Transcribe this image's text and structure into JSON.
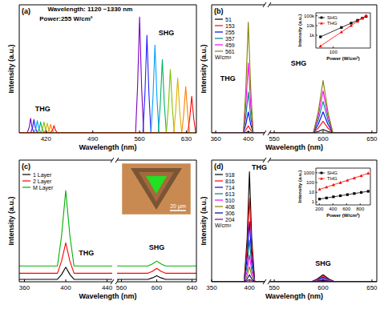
{
  "chart_data": [
    {
      "type": "line",
      "title": "(a)",
      "x_label": "Wavelength (nm)",
      "y_label": "Intensity (a.u.)",
      "xlim": [
        380,
        645
      ],
      "xticks": [
        420,
        490,
        560,
        630
      ],
      "ylim": [
        0,
        105
      ],
      "tick_labels": "x",
      "annotations": [
        {
          "text": "Wavelength: 1120 ~1330 nm",
          "x": 486,
          "y": 100
        },
        {
          "text": "Power:255 W/cm²",
          "x": 450,
          "y": 92
        },
        {
          "text": "THG",
          "x": 415,
          "y": 18
        },
        {
          "text": "SHG",
          "x": 600,
          "y": 80
        }
      ],
      "series": [
        {
          "color": "#7a00c0",
          "x": [
            380,
            392,
            395,
            397,
            399,
            402,
            554,
            557,
            560,
            563,
            566,
            645
          ],
          "values": [
            0,
            0,
            4.8,
            12,
            4.8,
            0,
            0,
            38,
            95,
            38,
            0,
            0
          ]
        },
        {
          "color": "#2020ff",
          "x": [
            380,
            397,
            400,
            402,
            404,
            407,
            565,
            568,
            571,
            574,
            577,
            645
          ],
          "values": [
            0,
            0,
            4.4,
            11,
            4.4,
            0,
            0,
            32,
            80,
            32,
            0,
            0
          ]
        },
        {
          "color": "#00a0ff",
          "x": [
            380,
            402,
            405,
            407,
            409,
            412,
            577,
            580,
            583,
            586,
            589,
            645
          ],
          "values": [
            0,
            0,
            4,
            10,
            4,
            0,
            0,
            28.8,
            72,
            28.8,
            0,
            0
          ]
        },
        {
          "color": "#00b060",
          "x": [
            380,
            407,
            410,
            412,
            414,
            417,
            588,
            591,
            594,
            597,
            600,
            645
          ],
          "values": [
            0,
            0,
            3.6,
            9,
            3.6,
            0,
            0,
            24,
            60,
            24,
            0,
            0
          ]
        },
        {
          "color": "#80c000",
          "x": [
            380,
            412,
            415,
            417,
            419,
            422,
            600,
            603,
            606,
            609,
            612,
            645
          ],
          "values": [
            0,
            0,
            3.6,
            9,
            3.6,
            0,
            0,
            20.8,
            52,
            20.8,
            0,
            0
          ]
        },
        {
          "color": "#e0b000",
          "x": [
            380,
            417,
            420,
            422,
            424,
            427,
            611,
            614,
            617,
            620,
            623,
            645
          ],
          "values": [
            0,
            0,
            3.2,
            8,
            3.2,
            0,
            0,
            18,
            45,
            18,
            0,
            0
          ]
        },
        {
          "color": "#ff8000",
          "x": [
            380,
            422,
            425,
            427,
            429,
            432,
            623,
            626,
            629,
            632,
            635,
            645
          ],
          "values": [
            0,
            0,
            2.8,
            7,
            2.8,
            0,
            0,
            15.2,
            38,
            15.2,
            0,
            0
          ]
        },
        {
          "color": "#ff0000",
          "x": [
            380,
            427,
            430,
            432,
            434,
            437,
            632,
            635,
            638,
            641,
            644,
            645
          ],
          "values": [
            0,
            0,
            2.4,
            6,
            2.4,
            0,
            0,
            12,
            30,
            12,
            0,
            0
          ]
        }
      ]
    },
    {
      "type": "line",
      "title": "(b)",
      "x_label": "Wavelength (nm)",
      "y_label": "Intensity (a.u.)",
      "xlim": [
        355,
        420
      ],
      "xticks": [
        360,
        400
      ],
      "ylim": [
        0,
        110
      ],
      "tick_labels": "x",
      "legend": "top-left",
      "legend_title": "W/cm²",
      "annotations": [
        {
          "text": "THG",
          "x": 375,
          "y": 45
        }
      ],
      "x": [
        355,
        394,
        397,
        400,
        403,
        406,
        420
      ],
      "series": [
        {
          "name": "51",
          "color": "#000000",
          "values": [
            0,
            0,
            0.4,
            1,
            0.4,
            0,
            0
          ]
        },
        {
          "name": "153",
          "color": "#ff0000",
          "values": [
            0,
            0,
            2.4,
            6,
            2.4,
            0,
            0
          ]
        },
        {
          "name": "255",
          "color": "#0000ff",
          "values": [
            0,
            0,
            7.2,
            18,
            7.2,
            0,
            0
          ]
        },
        {
          "name": "357",
          "color": "#008080",
          "values": [
            0,
            0,
            14,
            35,
            14,
            0,
            0
          ]
        },
        {
          "name": "459",
          "color": "#ff00ff",
          "values": [
            0,
            0,
            24,
            60,
            24,
            0,
            0
          ]
        },
        {
          "name": "561",
          "color": "#808000",
          "values": [
            0,
            0,
            38,
            95,
            38,
            0,
            0
          ]
        }
      ]
    },
    {
      "type": "line",
      "xlim": [
        545,
        655
      ],
      "xticks": [
        550,
        600,
        650
      ],
      "ylim": [
        0,
        110
      ],
      "tick_labels": "x",
      "annotations": [
        {
          "text": "SHG",
          "x": 575,
          "y": 58
        }
      ],
      "x": [
        545,
        590,
        595,
        600,
        605,
        610,
        655
      ],
      "series": [
        {
          "color": "#000000",
          "values": [
            0,
            0,
            1.2,
            3,
            1.2,
            0,
            0
          ]
        },
        {
          "color": "#ff0000",
          "values": [
            0,
            0,
            4,
            10,
            4,
            0,
            0
          ]
        },
        {
          "color": "#0000ff",
          "values": [
            0,
            0,
            7.2,
            18,
            7.2,
            0,
            0
          ]
        },
        {
          "color": "#008080",
          "values": [
            0,
            0,
            10.8,
            27,
            10.8,
            0,
            0
          ]
        },
        {
          "color": "#ff00ff",
          "values": [
            0,
            0,
            14.4,
            36,
            14.4,
            0,
            0
          ]
        },
        {
          "color": "#808000",
          "values": [
            0,
            0,
            18,
            45,
            18,
            0,
            0
          ]
        }
      ]
    },
    {
      "type": "scatter",
      "log": true,
      "x_label": "Power (W/cm²)",
      "y_label": "Intensity (a.u.)",
      "xlim": [
        40,
        700
      ],
      "xticks": [
        100
      ],
      "ylim": [
        50,
        200000
      ],
      "yticks": [
        {
          "value": 1000,
          "label": "1k"
        },
        {
          "value": 10000,
          "label": "10k"
        },
        {
          "value": 100000,
          "label": "100k"
        }
      ],
      "legend": "top-left",
      "x": [
        51,
        153,
        255,
        357,
        459,
        561
      ],
      "series": [
        {
          "name": "SHG",
          "color": "#000000",
          "marker": "square",
          "line_style": "solid",
          "values": [
            700,
            6300,
            17500,
            34300,
            56700,
            84700
          ]
        },
        {
          "name": "THG",
          "color": "#ff0000",
          "marker": "triangle",
          "line_style": "solid",
          "values": [
            80,
            2160,
            10000,
            27400,
            58300,
            106500
          ]
        }
      ]
    },
    {
      "type": "line",
      "title": "(c)",
      "x_label": "Wavelength (nm)",
      "y_label": "Intensity (a.u.)",
      "xlim": [
        355,
        445
      ],
      "xticks": [
        360,
        400,
        440
      ],
      "ylim": [
        0,
        100
      ],
      "tick_labels": "x",
      "legend": "top-left",
      "annotations": [
        {
          "text": "THG",
          "x": 420,
          "y": 22
        }
      ],
      "x": [
        355,
        392,
        396,
        400,
        404,
        408,
        445
      ],
      "series": [
        {
          "name": "1 Layer",
          "color": "#000000",
          "values": [
            2,
            2,
            6,
            12,
            6,
            2,
            2
          ]
        },
        {
          "name": "2 Layer",
          "color": "#ff0000",
          "values": [
            7,
            7,
            17,
            32,
            17,
            7,
            7
          ]
        },
        {
          "name": "M Layer",
          "color": "#00b000",
          "values": [
            13,
            13,
            38,
            75,
            38,
            13,
            13
          ]
        }
      ]
    },
    {
      "type": "line",
      "xlim": [
        555,
        645
      ],
      "xticks": [
        560,
        600,
        640
      ],
      "ylim": [
        0,
        100
      ],
      "tick_labels": "x",
      "annotations": [
        {
          "text": "SHG",
          "x": 600,
          "y": 26
        }
      ],
      "x": [
        555,
        590,
        595,
        600,
        605,
        610,
        645
      ],
      "series": [
        {
          "color": "#000000",
          "values": [
            2,
            2,
            3.2,
            5,
            3.2,
            2,
            2
          ]
        },
        {
          "color": "#ff0000",
          "values": [
            7,
            7,
            8.6,
            11,
            8.6,
            7,
            7
          ]
        },
        {
          "color": "#00b000",
          "values": [
            13,
            13,
            14.6,
            17,
            14.6,
            13,
            13
          ]
        }
      ]
    },
    {
      "type": "line",
      "title": "(d)",
      "x_label": "Wavelength (nm)",
      "y_label": "Intensity (a.u.)",
      "xlim": [
        350,
        420
      ],
      "xticks": [
        350,
        400
      ],
      "ylim": [
        0,
        105
      ],
      "tick_labels": "x",
      "legend": "top-left",
      "legend_title": "W/cm²",
      "annotations": [
        {
          "text": "THG",
          "x": 413,
          "y": 97
        }
      ],
      "x": [
        350,
        393,
        397,
        400,
        403,
        407,
        420
      ],
      "series": [
        {
          "name": "918",
          "color": "#000000",
          "values": [
            0,
            0,
            38,
            95,
            38,
            0,
            0
          ]
        },
        {
          "name": "816",
          "color": "#ff0000",
          "values": [
            0,
            0,
            28.8,
            72,
            28.8,
            0,
            0
          ]
        },
        {
          "name": "714",
          "color": "#0000ff",
          "values": [
            0,
            0,
            20.8,
            52,
            20.8,
            0,
            0
          ]
        },
        {
          "name": "613",
          "color": "#008080",
          "values": [
            0,
            0,
            14.4,
            36,
            14.4,
            0,
            0
          ]
        },
        {
          "name": "510",
          "color": "#ff00ff",
          "values": [
            0,
            0,
            9.2,
            23,
            9.2,
            0,
            0
          ]
        },
        {
          "name": "408",
          "color": "#808000",
          "values": [
            0,
            0,
            5.2,
            13,
            5.2,
            0,
            0
          ]
        },
        {
          "name": "306",
          "color": "#000080",
          "values": [
            0,
            0,
            2.4,
            6,
            2.4,
            0,
            0
          ]
        },
        {
          "name": "204",
          "color": "#800080",
          "values": [
            0,
            0,
            0.8,
            2,
            0.8,
            0,
            0
          ]
        }
      ]
    },
    {
      "type": "line",
      "xlim": [
        545,
        655
      ],
      "xticks": [
        550,
        600,
        650
      ],
      "ylim": [
        0,
        105
      ],
      "tick_labels": "x",
      "annotations": [
        {
          "text": "SHG",
          "x": 600,
          "y": 14
        }
      ],
      "x": [
        545,
        588,
        594,
        600,
        606,
        612,
        655
      ],
      "series": [
        {
          "color": "#000000",
          "values": [
            0,
            0,
            2.4,
            6,
            2.4,
            0,
            0
          ]
        },
        {
          "color": "#ff0000",
          "values": [
            0,
            0,
            2,
            5,
            2,
            0,
            0
          ]
        },
        {
          "color": "#0000ff",
          "values": [
            0,
            0,
            1.6,
            4,
            1.6,
            0,
            0
          ]
        },
        {
          "color": "#008080",
          "values": [
            0,
            0,
            1.28,
            3.2,
            1.28,
            0,
            0
          ]
        },
        {
          "color": "#ff00ff",
          "values": [
            0,
            0,
            1,
            2.5,
            1,
            0,
            0
          ]
        },
        {
          "color": "#808000",
          "values": [
            0,
            0,
            0.72,
            1.8,
            0.72,
            0,
            0
          ]
        },
        {
          "color": "#000080",
          "values": [
            0,
            0,
            0.48,
            1.2,
            0.48,
            0,
            0
          ]
        },
        {
          "color": "#800080",
          "values": [
            0,
            0,
            0.24,
            0.6,
            0.24,
            0,
            0
          ]
        }
      ]
    },
    {
      "type": "scatter",
      "log": "y",
      "x_label": "Power (W/cm²)",
      "y_label": "Intensity (a.u.)",
      "xlim": [
        150,
        950
      ],
      "xticks": [
        200,
        400,
        600,
        800
      ],
      "ylim": [
        0.5,
        3000
      ],
      "yticks": [
        1,
        10,
        100,
        1000
      ],
      "legend": "top-left",
      "x": [
        204,
        306,
        408,
        510,
        613,
        714,
        816,
        918
      ],
      "series": [
        {
          "name": "SHG",
          "color": "#000000",
          "marker": "square",
          "line_style": "solid",
          "values": [
            2,
            2.6,
            3.4,
            4.4,
            5.7,
            7.4,
            9.6,
            12.5
          ]
        },
        {
          "name": "THG",
          "color": "#ff0000",
          "marker": "triangle",
          "line_style": "solid",
          "values": [
            20,
            34,
            58,
            99,
            170,
            290,
            500,
            900
          ]
        }
      ]
    }
  ],
  "image": {
    "scale_bar": "20 μm"
  }
}
